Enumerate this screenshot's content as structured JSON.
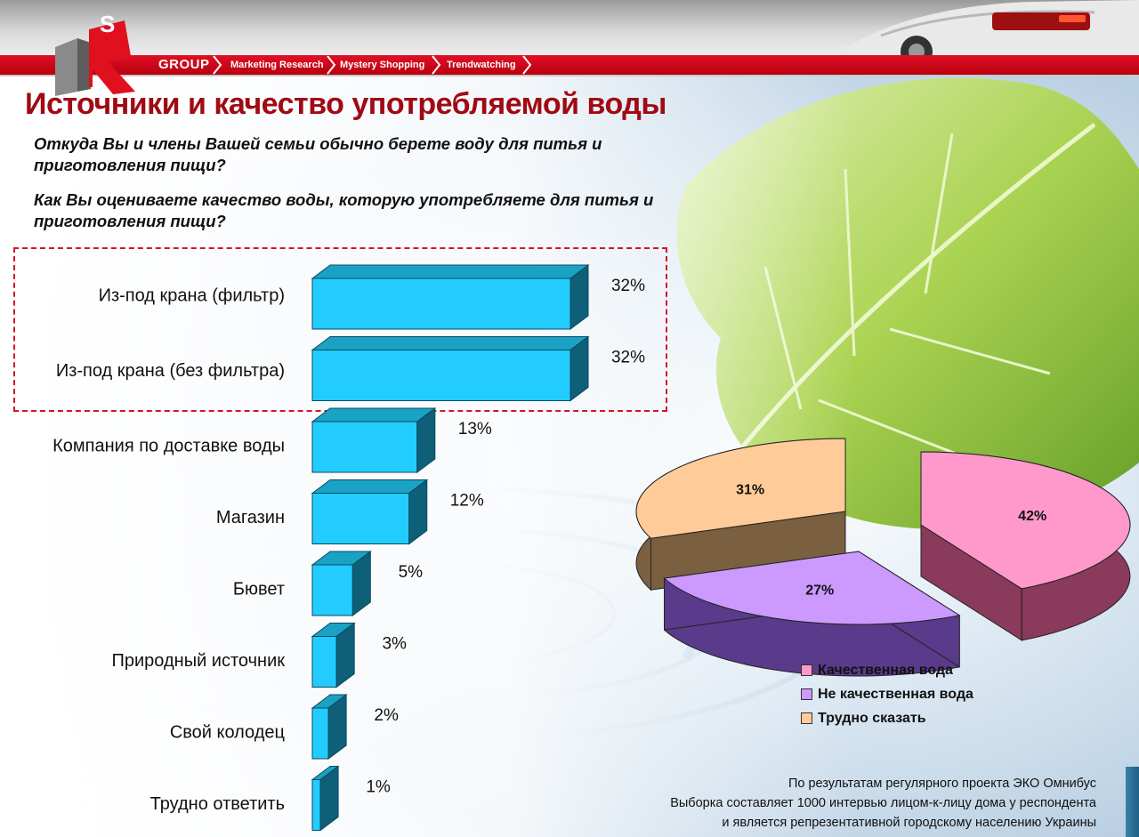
{
  "header": {
    "brand": "GROUP",
    "nav": [
      "Marketing Research",
      "Mystery Shopping",
      "Trendwatching"
    ]
  },
  "title": "Источники и качество употребляемой воды",
  "questions": [
    "Откуда Вы и члены Вашей семьи обычно берете воду для питья и приготовления пищи?",
    "Как Вы оцениваете качество воды, которую употребляете для питья и приготовления пищи?"
  ],
  "colors": {
    "bar_front": "#22ccff",
    "bar_top": "#1aa2c4",
    "bar_side": "#0e5f78",
    "pie_quality": "#ff99cc",
    "pie_not_quality": "#cc99ff",
    "pie_hard": "#ffcc99",
    "title": "#a00a14",
    "accent": "#d4122a"
  },
  "chart_data": [
    {
      "type": "bar",
      "orientation": "horizontal",
      "categories": [
        "Из-под крана (фильтр)",
        "Из-под крана (без фильтра)",
        "Компания по доставке воды",
        "Магазин",
        "Бювет",
        "Природный источник",
        "Свой колодец",
        "Трудно ответить"
      ],
      "values": [
        32,
        32,
        13,
        12,
        5,
        3,
        2,
        1
      ],
      "value_labels": [
        "32%",
        "32%",
        "13%",
        "12%",
        "5%",
        "3%",
        "2%",
        "1%"
      ],
      "unit": "%",
      "highlighted_categories": [
        0,
        1
      ]
    },
    {
      "type": "pie",
      "labels": [
        "Качественная вода",
        "Не качественная вода",
        "Трудно сказать"
      ],
      "values": [
        42,
        27,
        31
      ],
      "value_labels": [
        "42%",
        "27%",
        "31%"
      ],
      "legend": "bottom-right"
    }
  ],
  "footnote": [
    "По результатам регулярного проекта ЭКО Омнибус",
    "Выборка составляет 1000 интервью лицом-к-лицу дома у респондента",
    "и является репрезентативной городскому населению Украины"
  ]
}
